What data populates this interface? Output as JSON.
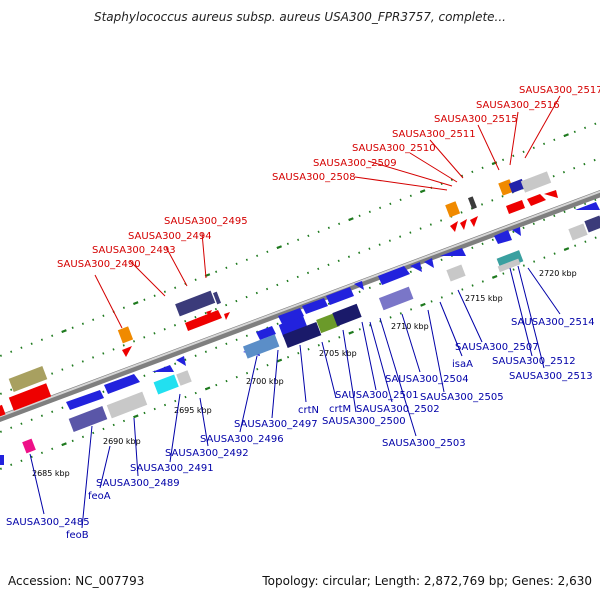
{
  "title": "Staphylococcus aureus subsp. aureus USA300_FPR3757, complete...",
  "footer": {
    "accession": "Accession: NC_007793",
    "summary": "Topology: circular; Length: 2,872,769 bp; Genes: 2,630"
  },
  "scale_labels": [
    "2685 kbp",
    "2690 kbp",
    "2695 kbp",
    "2700 kbp",
    "2705 kbp",
    "2710 kbp",
    "2715 kbp",
    "2720 kbp"
  ],
  "upper_gene_labels": [
    "SAUSA300_2490",
    "SAUSA300_2493",
    "SAUSA300_2494",
    "SAUSA300_2495",
    "SAUSA300_2508",
    "SAUSA300_2509",
    "SAUSA300_2510",
    "SAUSA300_2511",
    "SAUSA300_2515",
    "SAUSA300_2516",
    "SAUSA300_2517"
  ],
  "lower_gene_labels": [
    "SAUSA300_2485",
    "feoB",
    "feoA",
    "SAUSA300_2489",
    "SAUSA300_2491",
    "SAUSA300_2492",
    "SAUSA300_2496",
    "SAUSA300_2497",
    "crtN",
    "crtM",
    "SAUSA300_2500",
    "SAUSA300_2501",
    "SAUSA300_2502",
    "SAUSA300_2503",
    "SAUSA300_2504",
    "isaA",
    "SAUSA300_2505",
    "SAUSA300_2507",
    "SAUSA300_2512",
    "SAUSA300_2513",
    "SAUSA300_2514"
  ],
  "colors": {
    "red_label": "#d40000",
    "blue_label": "#0000a8",
    "backbone": "#8a8a8a",
    "tick_green": "#1f7a1f"
  }
}
